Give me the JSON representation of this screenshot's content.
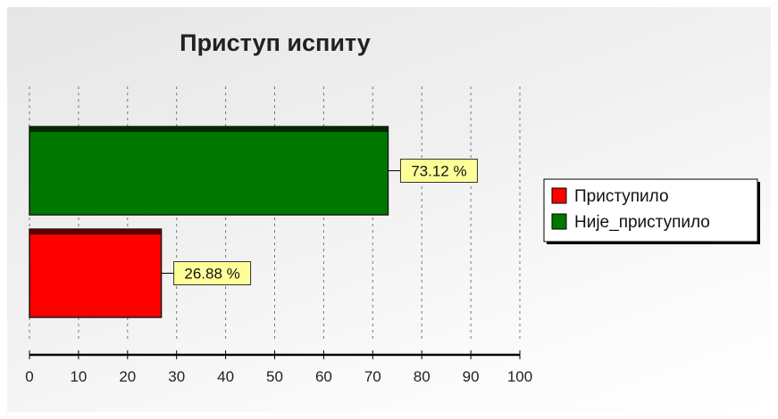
{
  "chart_data": {
    "type": "bar",
    "orientation": "horizontal",
    "title": "Приступ испиту",
    "categories": [
      "Приступило",
      "Није_приступило"
    ],
    "series": [
      {
        "name": "Приступило",
        "value": 26.88,
        "label": "26.88 %",
        "color": "#ff0000"
      },
      {
        "name": "Није_приступило",
        "value": 73.12,
        "label": "73.12 %",
        "color": "#007800"
      }
    ],
    "xlim": [
      0,
      100
    ],
    "xticks": [
      0,
      10,
      20,
      30,
      40,
      50,
      60,
      70,
      80,
      90,
      100
    ],
    "grid": true,
    "legend_position": "right",
    "label_background": "#ffff99"
  }
}
